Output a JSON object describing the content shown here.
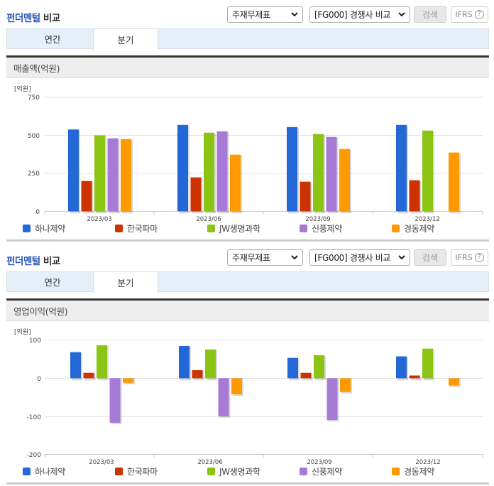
{
  "panels": [
    {
      "title_accent": "펀더멘털",
      "title_rest": " 비교",
      "select_statement": "주재무제표",
      "select_group": "[FG000] 경쟁사 비교",
      "search_label": "검색",
      "ifrs_label": "IFRS",
      "help_glyph": "?",
      "tabs": [
        {
          "label": "연간"
        },
        {
          "label": "분기"
        }
      ],
      "active_tab": "분기",
      "section_title": "매출액(억원)",
      "unit_label": "[억원]"
    },
    {
      "title_accent": "펀더멘털",
      "title_rest": " 비교",
      "select_statement": "주재무제표",
      "select_group": "[FG000] 경쟁사 비교",
      "search_label": "검색",
      "ifrs_label": "IFRS",
      "help_glyph": "?",
      "tabs": [
        {
          "label": "연간"
        },
        {
          "label": "분기"
        }
      ],
      "active_tab": "분기",
      "section_title": "영업이익(억원)",
      "unit_label": "[억원]"
    }
  ],
  "legend": [
    {
      "name": "하나제약",
      "color": "#2468d8"
    },
    {
      "name": "한국파마",
      "color": "#cc3300"
    },
    {
      "name": "JW생명과학",
      "color": "#8cc414"
    },
    {
      "name": "신풍제약",
      "color": "#a77ad6"
    },
    {
      "name": "경동제약",
      "color": "#ff9900"
    }
  ],
  "chart_data": [
    {
      "type": "bar",
      "title": "매출액(억원)",
      "ylabel": "[억원]",
      "xlabel": "",
      "categories": [
        "2023/03",
        "2023/06",
        "2023/09",
        "2023/12"
      ],
      "yticks": [
        0,
        250,
        500,
        750
      ],
      "ylim": [
        0,
        750
      ],
      "grid": true,
      "legend_position": "bottom",
      "series": [
        {
          "name": "하나제약",
          "color": "#2468d8",
          "values": [
            536,
            566,
            552,
            566
          ]
        },
        {
          "name": "한국파마",
          "color": "#cc3300",
          "values": [
            198,
            222,
            194,
            203
          ]
        },
        {
          "name": "JW생명과학",
          "color": "#8cc414",
          "values": [
            498,
            515,
            506,
            529
          ]
        },
        {
          "name": "신풍제약",
          "color": "#a77ad6",
          "values": [
            478,
            524,
            487,
            null
          ]
        },
        {
          "name": "경동제약",
          "color": "#ff9900",
          "values": [
            473,
            371,
            408,
            385
          ]
        }
      ]
    },
    {
      "type": "bar",
      "title": "영업이익(억원)",
      "ylabel": "[억원]",
      "xlabel": "",
      "categories": [
        "2023/03",
        "2023/06",
        "2023/09",
        "2023/12"
      ],
      "yticks": [
        -200,
        -100,
        0,
        100
      ],
      "ylim": [
        -200,
        100
      ],
      "grid": true,
      "legend_position": "bottom",
      "series": [
        {
          "name": "하나제약",
          "color": "#2468d8",
          "values": [
            68,
            84,
            53,
            57
          ]
        },
        {
          "name": "한국파마",
          "color": "#cc3300",
          "values": [
            14,
            21,
            14,
            7
          ]
        },
        {
          "name": "JW생명과학",
          "color": "#8cc414",
          "values": [
            86,
            75,
            60,
            77
          ]
        },
        {
          "name": "신풍제약",
          "color": "#a77ad6",
          "values": [
            -116,
            -99,
            -109,
            null
          ]
        },
        {
          "name": "경동제약",
          "color": "#ff9900",
          "values": [
            -12,
            -42,
            -36,
            -19
          ]
        }
      ]
    }
  ]
}
